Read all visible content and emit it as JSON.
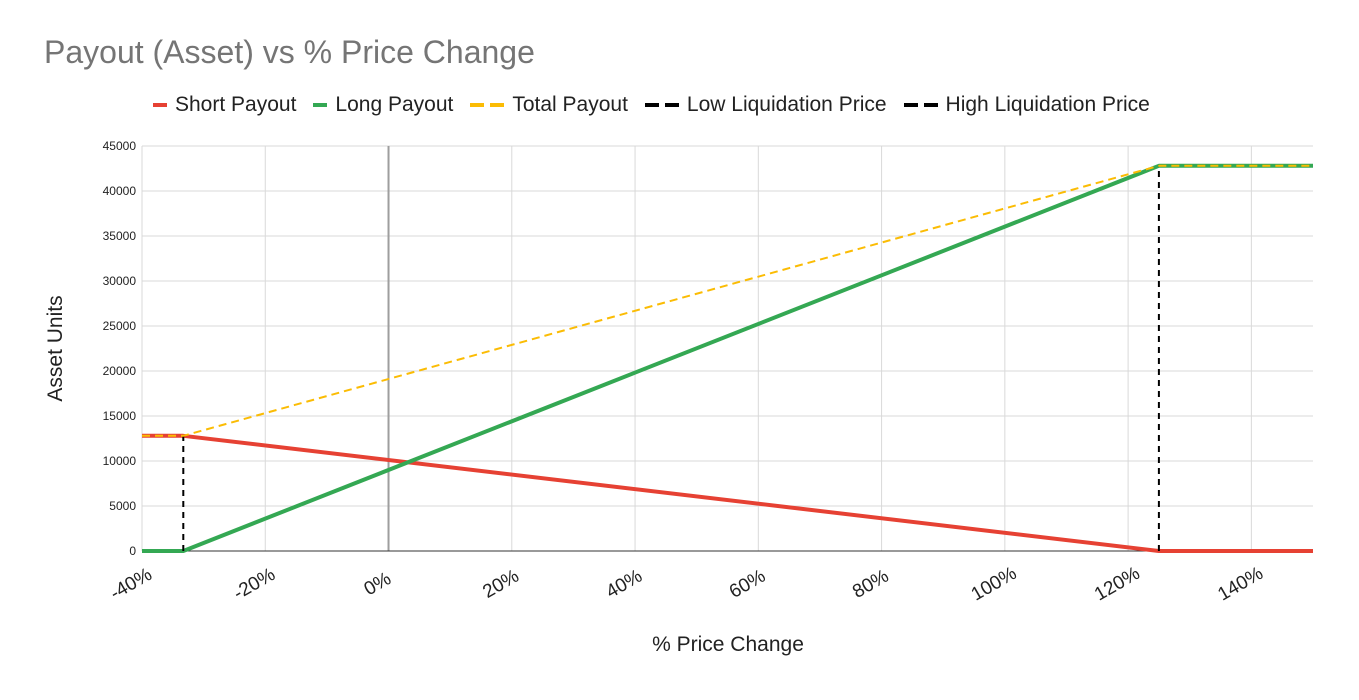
{
  "chart_data": {
    "type": "line",
    "title": "Payout (Asset) vs % Price Change",
    "xlabel": "% Price Change",
    "ylabel": "Asset Units",
    "xlim": [
      -40,
      150
    ],
    "ylim": [
      0,
      45000
    ],
    "x_ticks": [
      -40,
      -20,
      0,
      20,
      40,
      60,
      80,
      100,
      120,
      140
    ],
    "x_tick_labels": [
      "-40%",
      "-20%",
      "0%",
      "20%",
      "40%",
      "60%",
      "80%",
      "100%",
      "120%",
      "140%"
    ],
    "y_ticks": [
      0,
      5000,
      10000,
      15000,
      20000,
      25000,
      30000,
      35000,
      40000,
      45000
    ],
    "y_tick_labels": [
      "0",
      "5000",
      "10000",
      "15000",
      "20000",
      "25000",
      "30000",
      "35000",
      "40000",
      "45000"
    ],
    "grid": true,
    "legend_position": "top",
    "series": [
      {
        "name": "Short Payout",
        "color": "#e64133",
        "style": "solid",
        "points": [
          [
            -40,
            12800
          ],
          [
            -33.3,
            12800
          ],
          [
            125,
            0
          ],
          [
            150,
            0
          ]
        ]
      },
      {
        "name": "Long Payout",
        "color": "#34a853",
        "style": "solid",
        "points": [
          [
            -40,
            0
          ],
          [
            -33.3,
            0
          ],
          [
            125,
            42800
          ],
          [
            150,
            42800
          ]
        ]
      },
      {
        "name": "Total Payout",
        "color": "#fbbc04",
        "style": "dashed",
        "points": [
          [
            -40,
            12800
          ],
          [
            -33.3,
            12800
          ],
          [
            125,
            42800
          ],
          [
            150,
            42800
          ]
        ]
      },
      {
        "name": "Low Liquidation Price",
        "color": "#000000",
        "style": "dashed",
        "points": [
          [
            -33.3,
            0
          ],
          [
            -33.3,
            12800
          ]
        ]
      },
      {
        "name": "High Liquidation Price",
        "color": "#000000",
        "style": "dashed",
        "points": [
          [
            125,
            0
          ],
          [
            125,
            42800
          ]
        ]
      }
    ]
  }
}
